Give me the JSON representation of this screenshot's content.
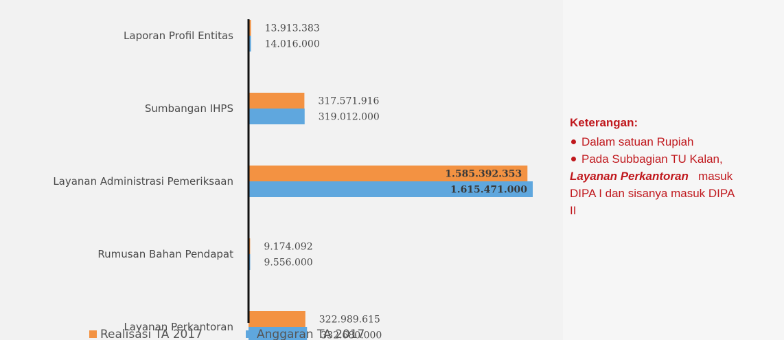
{
  "chart_data": {
    "type": "bar",
    "orientation": "horizontal",
    "categories": [
      "Laporan Profil Entitas",
      "Sumbangan IHPS",
      "Layanan Administrasi Pemeriksaan",
      "Rumusan Bahan Pendapat",
      "Layanan Perkantoran"
    ],
    "series": [
      {
        "name": "Realisasi TA 2017",
        "color": "#f39242",
        "values": [
          13913383,
          317571916,
          1585392353,
          9174092,
          322989615
        ],
        "labels": [
          "13.913.383",
          "317.571.916",
          "1.585.392.353",
          "9.174.092",
          "322.989.615"
        ]
      },
      {
        "name": "Anggaran TA 2017",
        "color": "#5fa7de",
        "values": [
          14016000,
          319012000,
          1615471000,
          9556000,
          332680000
        ],
        "labels": [
          "14.016.000",
          "319.012.000",
          "1.615.471.000",
          "9.556.000",
          "332.680.000"
        ]
      }
    ],
    "xlim": [
      0,
      1615471000
    ],
    "grid": false,
    "legend_position": "bottom-left"
  },
  "note": {
    "title": "Keterangan:",
    "bullet1": "Dalam satuan Rupiah",
    "bullet2": "Pada Subbagian TU Kalan,",
    "line2": "Layanan Perkantoran",
    "line2_rest": "masuk",
    "line3": "DIPA I dan sisanya masuk DIPA",
    "line4": "II"
  }
}
